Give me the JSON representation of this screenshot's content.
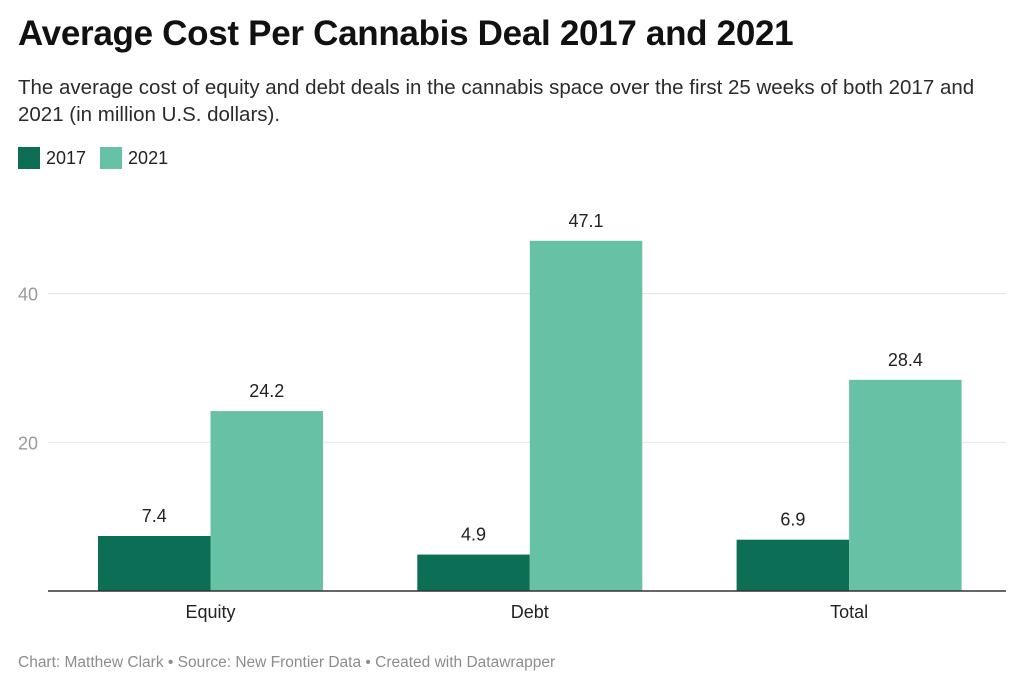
{
  "header": {
    "title": "Average Cost Per Cannabis Deal 2017 and 2021",
    "subtitle": "The average cost of equity and debt deals in the cannabis space over the first 25 weeks of both 2017 and 2021 (in million U.S. dollars)."
  },
  "footer": {
    "credit": "Chart: Matthew Clark • Source: New Frontier Data • Created with Datawrapper"
  },
  "chart_data": {
    "type": "bar",
    "categories": [
      "Equity",
      "Debt",
      "Total"
    ],
    "series": [
      {
        "name": "2017",
        "values": [
          7.4,
          4.9,
          6.9
        ],
        "color": "#0b6e55"
      },
      {
        "name": "2021",
        "values": [
          24.2,
          47.1,
          28.4
        ],
        "color": "#67c2a5"
      }
    ],
    "yticks": [
      20,
      40
    ],
    "ylim": [
      0,
      50
    ],
    "grid": true,
    "legend": "top-left",
    "data_labels": true
  }
}
